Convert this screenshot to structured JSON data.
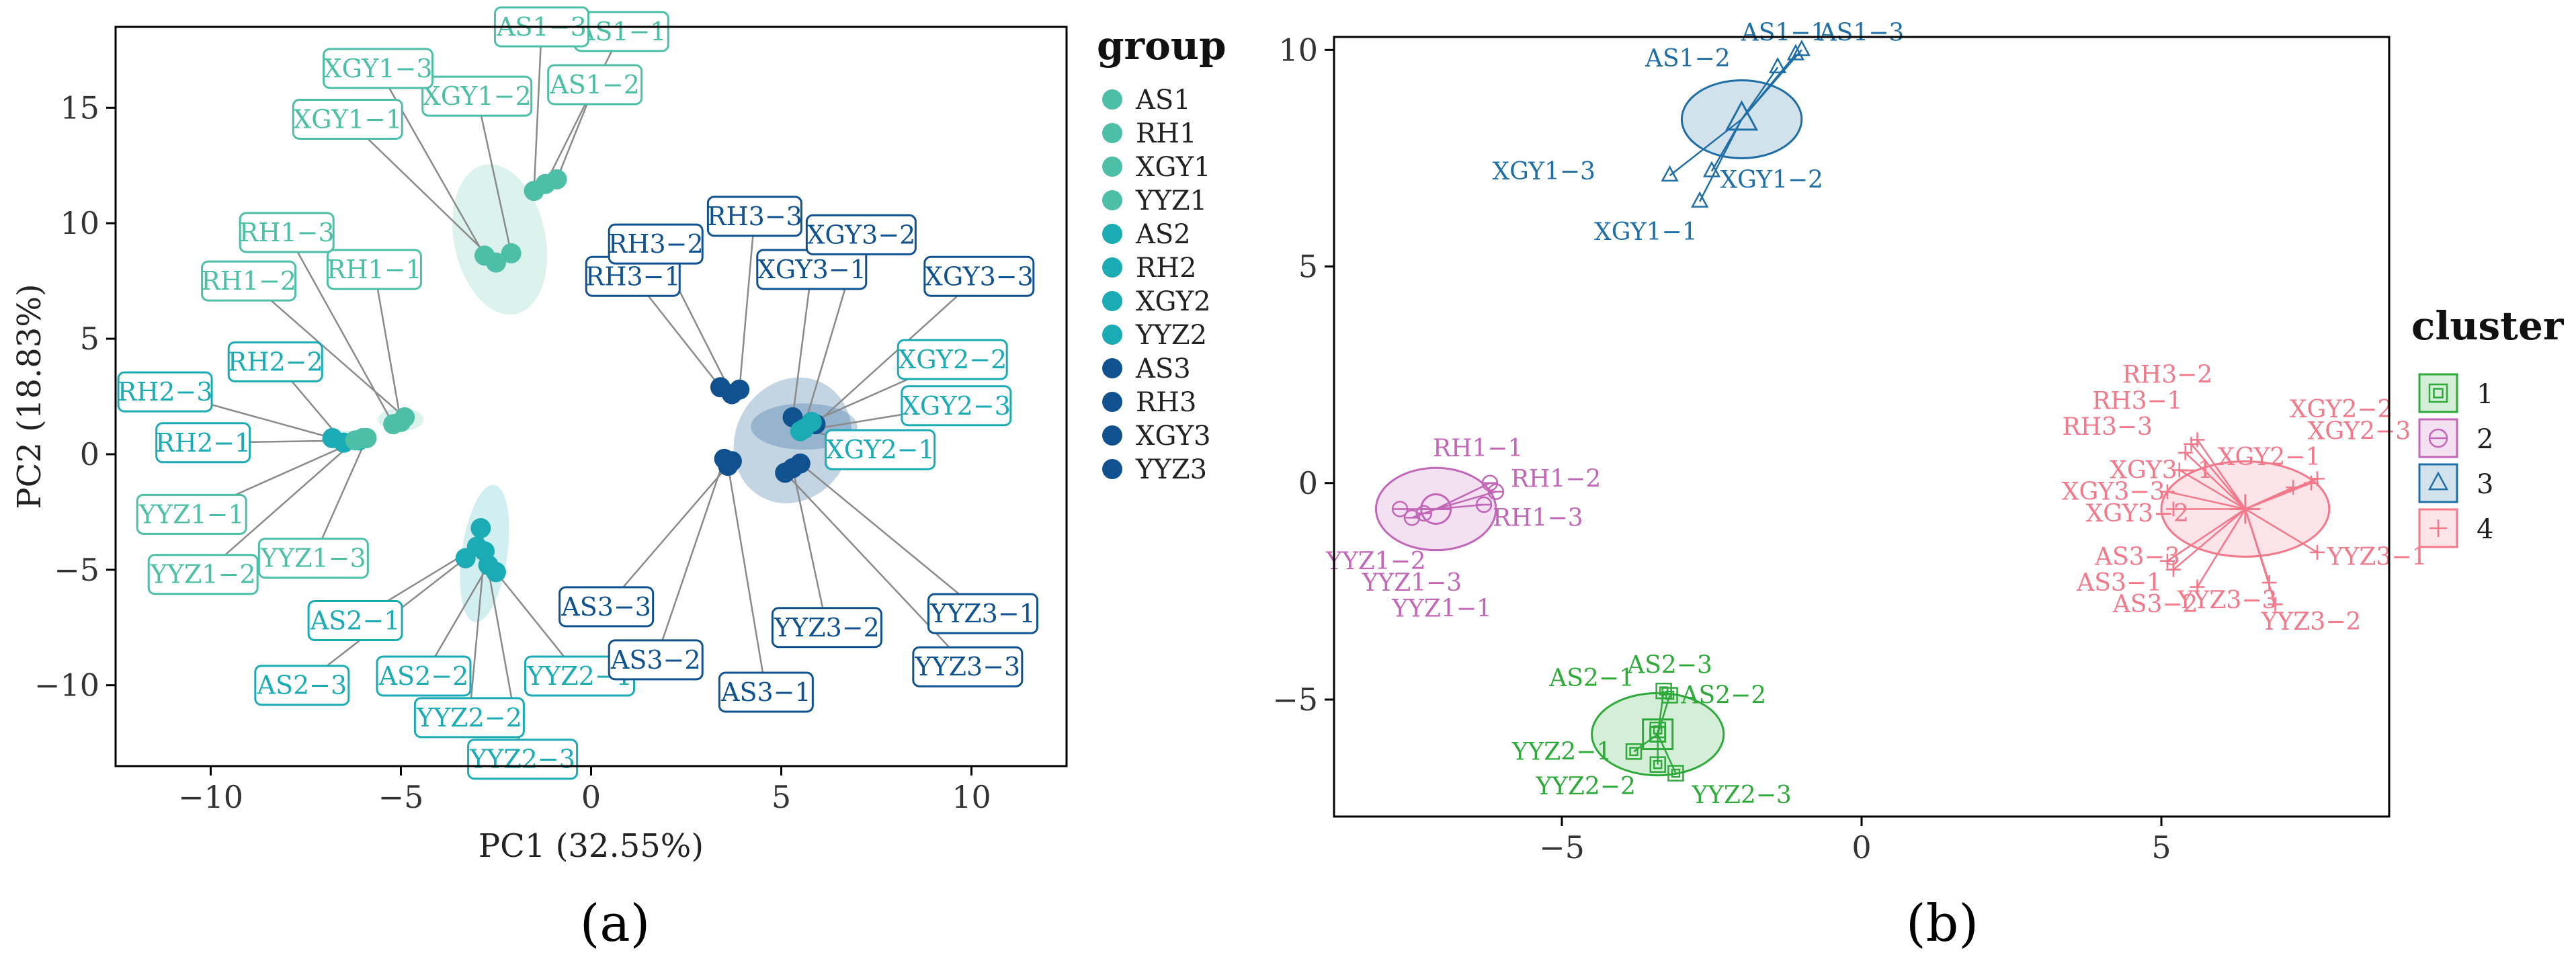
{
  "colors": {
    "AS1": "#4cbfa6",
    "RH1": "#4cbfa6",
    "XGY1": "#4cbfa6",
    "YYZ1": "#4cbfa6",
    "AS2": "#1aabb4",
    "RH2": "#1aabb4",
    "XGY2": "#1aabb4",
    "YYZ2": "#1aabb4",
    "AS3": "#0f528f",
    "RH3": "#0f528f",
    "XGY3": "#0f528f",
    "YYZ3": "#0f528f",
    "cluster1": "#2eaa3a",
    "cluster2": "#c266b8",
    "cluster3": "#1f6ea6",
    "cluster4": "#f2788a"
  },
  "panel_labels": {
    "a": "(a)",
    "b": "(b)"
  },
  "chart_data": [
    {
      "type": "scatter",
      "panel": "(a)",
      "xlabel": "PC1  (32.55%)",
      "ylabel": "PC2  (18.83%)",
      "xlim": [
        -12.5,
        12.5
      ],
      "ylim": [
        -13.5,
        18.5
      ],
      "xticks": [
        -10,
        -5,
        0,
        5,
        10
      ],
      "yticks": [
        -10,
        -5,
        0,
        5,
        10,
        15
      ],
      "legend_title": "group",
      "legend": [
        "AS1",
        "RH1",
        "XGY1",
        "YYZ1",
        "AS2",
        "RH2",
        "XGY2",
        "YYZ2",
        "AS3",
        "RH3",
        "XGY3",
        "YYZ3"
      ],
      "points": [
        {
          "label": "AS1−1",
          "x": -1.2,
          "y": 11.7,
          "group": "AS1",
          "lx": 0.8,
          "ly": 18.3
        },
        {
          "label": "AS1−2",
          "x": -0.9,
          "y": 11.9,
          "group": "AS1",
          "lx": 0.1,
          "ly": 16.0
        },
        {
          "label": "AS1−3",
          "x": -1.5,
          "y": 11.4,
          "group": "AS1",
          "lx": -1.3,
          "ly": 18.5
        },
        {
          "label": "XGY1−1",
          "x": -2.5,
          "y": 8.3,
          "group": "XGY1",
          "lx": -6.4,
          "ly": 14.5
        },
        {
          "label": "XGY1−2",
          "x": -2.1,
          "y": 8.7,
          "group": "XGY1",
          "lx": -3.0,
          "ly": 15.5
        },
        {
          "label": "XGY1−3",
          "x": -2.8,
          "y": 8.6,
          "group": "XGY1",
          "lx": -5.6,
          "ly": 16.7
        },
        {
          "label": "RH1−1",
          "x": -5.0,
          "y": 1.4,
          "group": "RH1",
          "lx": -5.7,
          "ly": 8.0
        },
        {
          "label": "RH1−2",
          "x": -4.9,
          "y": 1.6,
          "group": "RH1",
          "lx": -9.0,
          "ly": 7.5
        },
        {
          "label": "RH1−3",
          "x": -5.2,
          "y": 1.3,
          "group": "RH1",
          "lx": -8.0,
          "ly": 9.6
        },
        {
          "label": "RH2−1",
          "x": -6.1,
          "y": 0.6,
          "group": "RH2",
          "lx": -10.2,
          "ly": 0.5
        },
        {
          "label": "RH2−2",
          "x": -6.5,
          "y": 0.5,
          "group": "RH2",
          "lx": -8.3,
          "ly": 4.0
        },
        {
          "label": "RH2−3",
          "x": -6.8,
          "y": 0.7,
          "group": "RH2",
          "lx": -11.2,
          "ly": 2.7
        },
        {
          "label": "YYZ1−1",
          "x": -6.0,
          "y": 0.7,
          "group": "YYZ1",
          "lx": -10.5,
          "ly": -2.6
        },
        {
          "label": "YYZ1−2",
          "x": -6.2,
          "y": 0.6,
          "group": "YYZ1",
          "lx": -10.2,
          "ly": -5.2
        },
        {
          "label": "YYZ1−3",
          "x": -5.9,
          "y": 0.7,
          "group": "YYZ1",
          "lx": -7.3,
          "ly": -4.5
        },
        {
          "label": "AS2−1",
          "x": -3.0,
          "y": -4.0,
          "group": "AS2",
          "lx": -6.2,
          "ly": -7.2
        },
        {
          "label": "AS2−2",
          "x": -2.7,
          "y": -4.8,
          "group": "AS2",
          "lx": -4.4,
          "ly": -9.6
        },
        {
          "label": "AS2−3",
          "x": -3.3,
          "y": -4.5,
          "group": "AS2",
          "lx": -7.6,
          "ly": -10.0
        },
        {
          "label": "YYZ2−1",
          "x": -2.5,
          "y": -5.1,
          "group": "YYZ2",
          "lx": -0.3,
          "ly": -9.6
        },
        {
          "label": "YYZ2−2",
          "x": -2.8,
          "y": -4.2,
          "group": "YYZ2",
          "lx": -3.2,
          "ly": -11.4
        },
        {
          "label": "YYZ2−3",
          "x": -2.9,
          "y": -3.2,
          "group": "YYZ2",
          "lx": -1.8,
          "ly": -13.2
        },
        {
          "label": "RH3−1",
          "x": 3.4,
          "y": 2.9,
          "group": "RH3",
          "lx": 1.1,
          "ly": 7.7
        },
        {
          "label": "RH3−2",
          "x": 3.7,
          "y": 2.6,
          "group": "RH3",
          "lx": 1.7,
          "ly": 9.1
        },
        {
          "label": "RH3−3",
          "x": 3.9,
          "y": 2.8,
          "group": "RH3",
          "lx": 4.3,
          "ly": 10.3
        },
        {
          "label": "XGY3−1",
          "x": 5.3,
          "y": 1.6,
          "group": "XGY3",
          "lx": 5.8,
          "ly": 8.0
        },
        {
          "label": "XGY3−2",
          "x": 5.6,
          "y": 1.2,
          "group": "XGY3",
          "lx": 7.1,
          "ly": 9.5
        },
        {
          "label": "XGY3−3",
          "x": 5.9,
          "y": 1.3,
          "group": "XGY3",
          "lx": 10.2,
          "ly": 7.7
        },
        {
          "label": "XGY2−1",
          "x": 5.6,
          "y": 1.1,
          "group": "XGY2",
          "lx": 7.6,
          "ly": 0.2
        },
        {
          "label": "XGY2−2",
          "x": 5.8,
          "y": 1.4,
          "group": "XGY2",
          "lx": 9.5,
          "ly": 4.1
        },
        {
          "label": "XGY2−3",
          "x": 5.5,
          "y": 1.0,
          "group": "XGY2",
          "lx": 9.6,
          "ly": 2.1
        },
        {
          "label": "AS3−1",
          "x": 3.6,
          "y": -0.5,
          "group": "AS3",
          "lx": 4.6,
          "ly": -10.3
        },
        {
          "label": "AS3−2",
          "x": 3.5,
          "y": -0.2,
          "group": "AS3",
          "lx": 1.7,
          "ly": -8.9
        },
        {
          "label": "AS3−3",
          "x": 3.7,
          "y": -0.3,
          "group": "AS3",
          "lx": 0.4,
          "ly": -6.6
        },
        {
          "label": "YYZ3−1",
          "x": 5.5,
          "y": -0.4,
          "group": "YYZ3",
          "lx": 10.3,
          "ly": -6.9
        },
        {
          "label": "YYZ3−2",
          "x": 5.3,
          "y": -0.6,
          "group": "YYZ3",
          "lx": 6.2,
          "ly": -7.5
        },
        {
          "label": "YYZ3−3",
          "x": 5.1,
          "y": -0.8,
          "group": "YYZ3",
          "lx": 9.9,
          "ly": -9.2
        }
      ],
      "ellipses": [
        {
          "group": "XGY1",
          "cx": -2.4,
          "cy": 9.3,
          "rx": 1.2,
          "ry": 3.3,
          "angle": -12,
          "opacity": 0.2
        },
        {
          "group": "RH1",
          "cx": -5.0,
          "cy": 1.5,
          "rx": 0.6,
          "ry": 0.5,
          "angle": 0,
          "opacity": 0.2
        },
        {
          "group": "RH2",
          "cx": -6.4,
          "cy": 0.6,
          "rx": 0.7,
          "ry": 0.4,
          "angle": 0,
          "opacity": 0.2
        },
        {
          "group": "YYZ2",
          "cx": -2.8,
          "cy": -4.3,
          "rx": 0.6,
          "ry": 3.0,
          "angle": 8,
          "opacity": 0.2
        },
        {
          "group": "AS3",
          "cx": 5.3,
          "cy": 0.6,
          "rx": 1.5,
          "ry": 2.8,
          "angle": 30,
          "opacity": 0.25
        },
        {
          "group": "XGY3",
          "cx": 5.6,
          "cy": 1.2,
          "rx": 1.4,
          "ry": 1.0,
          "angle": 0,
          "opacity": 0.25
        }
      ]
    },
    {
      "type": "scatter",
      "panel": "(b)",
      "xlabel": "",
      "ylabel": "",
      "xlim": [
        -8.8,
        8.8
      ],
      "ylim": [
        -7.7,
        10.3
      ],
      "xticks": [
        -5,
        0,
        5
      ],
      "yticks": [
        -5,
        0,
        5,
        10
      ],
      "legend_title": "cluster",
      "legend": [
        "1",
        "2",
        "3",
        "4"
      ],
      "clusters": [
        {
          "id": "1",
          "center": [
            -3.4,
            -5.8
          ],
          "rx": 1.1,
          "ry": 0.95,
          "points": [
            {
              "label": "AS2−1",
              "x": -3.4,
              "y": -5.7,
              "lx": -4.5,
              "ly": -4.5
            },
            {
              "label": "AS2−2",
              "x": -3.2,
              "y": -4.9,
              "lx": -2.3,
              "ly": -4.9
            },
            {
              "label": "AS2−3",
              "x": -3.3,
              "y": -4.8,
              "lx": -3.2,
              "ly": -4.2
            },
            {
              "label": "YYZ2−1",
              "x": -3.8,
              "y": -6.2,
              "lx": -5.0,
              "ly": -6.2
            },
            {
              "label": "YYZ2−2",
              "x": -3.4,
              "y": -6.5,
              "lx": -4.6,
              "ly": -7.0
            },
            {
              "label": "YYZ2−3",
              "x": -3.1,
              "y": -6.7,
              "lx": -2.0,
              "ly": -7.2
            }
          ]
        },
        {
          "id": "2",
          "center": [
            -7.1,
            -0.6
          ],
          "rx": 1.0,
          "ry": 0.95,
          "points": [
            {
              "label": "RH1−1",
              "x": -6.2,
              "y": 0.0,
              "lx": -6.4,
              "ly": 0.8
            },
            {
              "label": "RH1−2",
              "x": -6.1,
              "y": -0.2,
              "lx": -5.1,
              "ly": 0.1
            },
            {
              "label": "RH1−3",
              "x": -6.3,
              "y": -0.5,
              "lx": -5.4,
              "ly": -0.8
            },
            {
              "label": "YYZ1−1",
              "x": -7.3,
              "y": -0.7,
              "lx": -7.0,
              "ly": -2.9
            },
            {
              "label": "YYZ1−2",
              "x": -7.7,
              "y": -0.6,
              "lx": -8.1,
              "ly": -1.8
            },
            {
              "label": "YYZ1−3",
              "x": -7.5,
              "y": -0.8,
              "lx": -7.5,
              "ly": -2.3
            }
          ]
        },
        {
          "id": "3",
          "center": [
            -2.0,
            8.4
          ],
          "rx": 1.0,
          "ry": 0.9,
          "points": [
            {
              "label": "AS1−1",
              "x": -1.0,
              "y": 10.0,
              "lx": -1.3,
              "ly": 10.4
            },
            {
              "label": "AS1−2",
              "x": -1.4,
              "y": 9.6,
              "lx": -2.9,
              "ly": 9.8
            },
            {
              "label": "AS1−3",
              "x": -1.1,
              "y": 9.9,
              "lx": 0.0,
              "ly": 10.4
            },
            {
              "label": "XGY1−1",
              "x": -2.7,
              "y": 6.5,
              "lx": -3.6,
              "ly": 5.8
            },
            {
              "label": "XGY1−2",
              "x": -2.5,
              "y": 7.2,
              "lx": -1.5,
              "ly": 7.0
            },
            {
              "label": "XGY1−3",
              "x": -3.2,
              "y": 7.1,
              "lx": -5.3,
              "ly": 7.2
            }
          ]
        },
        {
          "id": "4",
          "center": [
            6.4,
            -0.6
          ],
          "rx": 1.4,
          "ry": 1.1,
          "points": [
            {
              "label": "RH3−1",
              "x": 5.5,
              "y": 0.9,
              "lx": 4.6,
              "ly": 1.9
            },
            {
              "label": "RH3−2",
              "x": 5.6,
              "y": 1.0,
              "lx": 5.1,
              "ly": 2.5
            },
            {
              "label": "RH3−3",
              "x": 5.4,
              "y": 0.7,
              "lx": 4.1,
              "ly": 1.3
            },
            {
              "label": "XGY2−1",
              "x": 7.2,
              "y": -0.1,
              "lx": 6.8,
              "ly": 0.6
            },
            {
              "label": "XGY2−2",
              "x": 7.6,
              "y": 0.1,
              "lx": 8.0,
              "ly": 1.7
            },
            {
              "label": "XGY2−3",
              "x": 7.5,
              "y": 0.0,
              "lx": 8.3,
              "ly": 1.2
            },
            {
              "label": "XGY3−1",
              "x": 5.3,
              "y": 0.3,
              "lx": 5.0,
              "ly": 0.3
            },
            {
              "label": "XGY3−2",
              "x": 5.2,
              "y": -0.6,
              "lx": 4.6,
              "ly": -0.7
            },
            {
              "label": "XGY3−3",
              "x": 5.1,
              "y": -0.2,
              "lx": 4.2,
              "ly": -0.2
            },
            {
              "label": "AS3−1",
              "x": 5.2,
              "y": -2.0,
              "lx": 4.3,
              "ly": -2.3
            },
            {
              "label": "AS3−2",
              "x": 5.6,
              "y": -2.4,
              "lx": 4.9,
              "ly": -2.8
            },
            {
              "label": "AS3−3",
              "x": 5.1,
              "y": -1.8,
              "lx": 4.6,
              "ly": -1.7
            },
            {
              "label": "YYZ3−1",
              "x": 7.6,
              "y": -1.6,
              "lx": 8.6,
              "ly": -1.7
            },
            {
              "label": "YYZ3−2",
              "x": 6.9,
              "y": -2.8,
              "lx": 7.5,
              "ly": -3.2
            },
            {
              "label": "YYZ3−3",
              "x": 6.8,
              "y": -2.3,
              "lx": 6.1,
              "ly": -2.7
            }
          ]
        }
      ]
    }
  ]
}
